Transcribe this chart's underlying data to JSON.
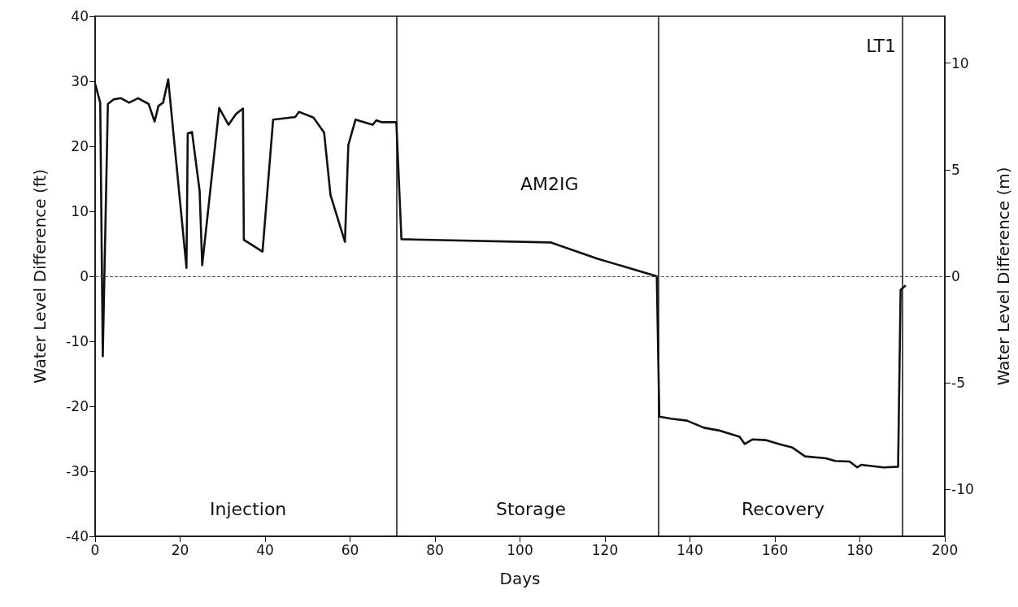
{
  "chart_data": {
    "type": "line",
    "xlabel": "Days",
    "ylabel": "Water Level Difference (ft)",
    "y2label": "Water Level Difference (m)",
    "annotations": [
      "LT1",
      "AM2IG",
      "Injection",
      "Storage",
      "Recovery"
    ],
    "xlim": [
      0,
      200
    ],
    "xticks": [
      0,
      20,
      40,
      60,
      80,
      100,
      120,
      140,
      160,
      180,
      200
    ],
    "ylim": [
      -40,
      40
    ],
    "yticks": [
      -40,
      -30,
      -20,
      -10,
      0,
      10,
      20,
      30,
      40
    ],
    "y2lim": [
      -12.192,
      12.192
    ],
    "y2ticks": [
      -10,
      -5,
      0,
      5,
      10
    ],
    "grid": false,
    "marker": "none",
    "line_style": "solid",
    "ref_lines": [
      {
        "axis": "y",
        "value": 0,
        "color": "#555555",
        "line_style": "dashed"
      },
      {
        "axis": "x",
        "value": 71,
        "color": "#111111"
      },
      {
        "axis": "x",
        "value": 132.5,
        "color": "#111111"
      },
      {
        "axis": "x",
        "value": 190,
        "color": "#111111"
      }
    ],
    "series": [
      {
        "color": "#111111",
        "x": [
          0,
          1.2,
          1.8,
          3.0,
          4.3,
          6.1,
          8.0,
          10.1,
          12.6,
          14.0,
          14.9,
          16.0,
          17.2,
          21.5,
          21.8,
          22.8,
          24.6,
          25.2,
          29.2,
          31.4,
          33.2,
          34.8,
          35.0,
          39.4,
          41.9,
          47.1,
          48.0,
          51.4,
          53.9,
          55.4,
          58.8,
          59.6,
          61.3,
          65.3,
          66.2,
          67.5,
          70.9,
          72.1,
          107.3,
          118.3,
          132.2,
          132.8,
          135.6,
          139.3,
          143.3,
          146.7,
          151.7,
          152.9,
          154.7,
          157.8,
          161.5,
          164.0,
          167.1,
          172.0,
          174.2,
          177.6,
          179.4,
          180.3,
          185.6,
          189.0,
          189.6,
          190.8
        ],
        "values": [
          29.6,
          26.7,
          -12.3,
          26.5,
          27.2,
          27.4,
          26.7,
          27.4,
          26.5,
          23.8,
          26.2,
          26.7,
          30.3,
          1.3,
          22,
          22.2,
          13.1,
          1.7,
          25.9,
          23.3,
          25,
          25.8,
          5.6,
          3.8,
          24.1,
          24.5,
          25.3,
          24.4,
          22.1,
          12.5,
          5.3,
          20.2,
          24.1,
          23.3,
          24,
          23.7,
          23.7,
          5.7,
          5.2,
          2.7,
          0,
          -21.6,
          -21.9,
          -22.2,
          -23.3,
          -23.7,
          -24.7,
          -25.8,
          -25.1,
          -25.2,
          -25.9,
          -26.3,
          -27.7,
          -28,
          -28.4,
          -28.5,
          -29.4,
          -29,
          -29.4,
          -29.3,
          -2.1,
          -1.4
        ]
      }
    ]
  }
}
